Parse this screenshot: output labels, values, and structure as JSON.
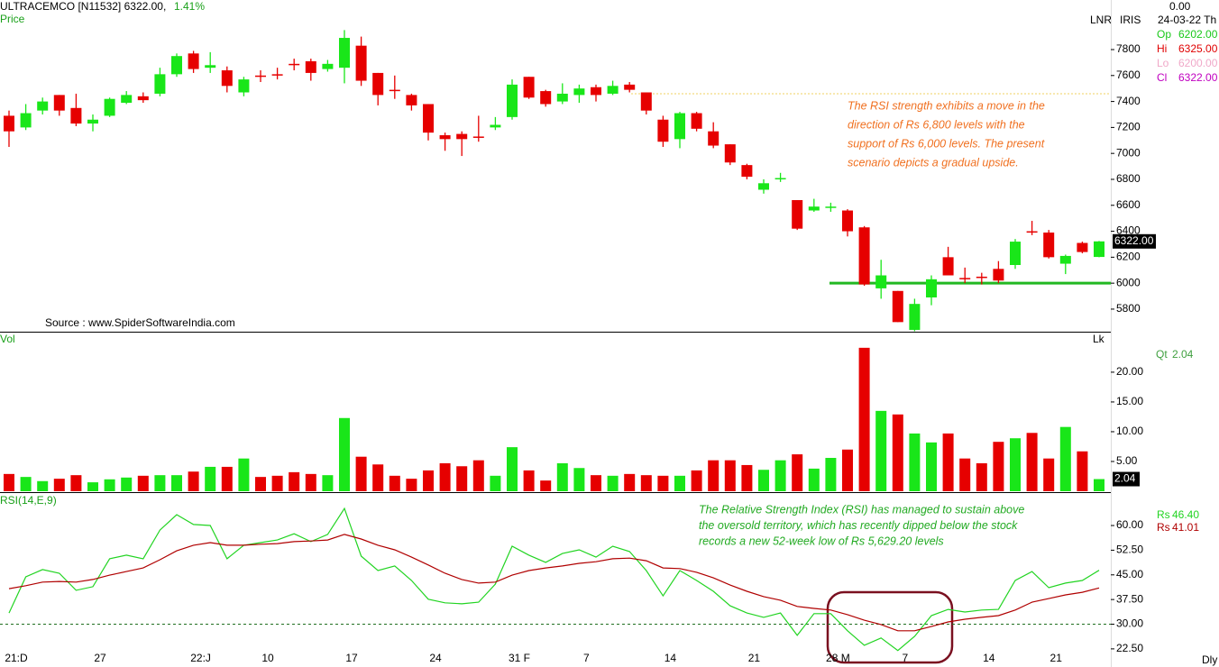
{
  "header": {
    "symbol": "ULTRACEMCO [N11532] 6322.00,",
    "change": "1.41%",
    "source": "Source : www.SpiderSoftwareIndia.com"
  },
  "side_panel": {
    "top": "0.00",
    "mode": "LNR",
    "indicator": "IRIS",
    "date": "24-03-22 Th",
    "period": "Dly",
    "ohlc": [
      {
        "label": "Op",
        "value": "6202.00",
        "color": "#19c819"
      },
      {
        "label": "Hi",
        "value": "6325.00",
        "color": "#e00000"
      },
      {
        "label": "Lo",
        "value": "6200.00",
        "color": "#f0a8c8"
      },
      {
        "label": "Cl",
        "value": "6322.00",
        "color": "#c000c0"
      }
    ]
  },
  "chart_data": [
    {
      "type": "candlestick",
      "title": "Price",
      "categories": [
        "21:D",
        null,
        null,
        null,
        null,
        "27",
        null,
        null,
        null,
        null,
        null,
        "22:J",
        null,
        null,
        null,
        "10",
        null,
        null,
        null,
        null,
        "17",
        null,
        null,
        null,
        null,
        "24",
        null,
        null,
        null,
        null,
        "31 F",
        null,
        null,
        null,
        "7",
        null,
        null,
        null,
        null,
        "14",
        null,
        null,
        null,
        null,
        "21",
        null,
        null,
        null,
        null,
        "28 M",
        null,
        null,
        null,
        "7",
        null,
        null,
        null,
        null,
        "14",
        null,
        null,
        null,
        "21",
        null,
        null,
        null
      ],
      "open": [
        7290,
        7200,
        7330,
        7450,
        7350,
        7230,
        7290,
        7390,
        7440,
        7460,
        7610,
        7770,
        7660,
        7640,
        7470,
        7600,
        7610,
        7690,
        7710,
        7650,
        7660,
        7830,
        7620,
        7490,
        7450,
        7380,
        7140,
        7150,
        7130,
        7200,
        7280,
        7590,
        7480,
        7400,
        7450,
        7510,
        7460,
        7530,
        7470,
        7260,
        7110,
        7310,
        7170,
        7070,
        6910,
        6720,
        6800,
        6640,
        6560,
        6580,
        6560,
        6430,
        5960,
        5940,
        5640,
        5890,
        6200,
        6040,
        6050,
        6110,
        6140,
        6400,
        6390,
        6150,
        6310,
        6202
      ],
      "high": [
        7330,
        7380,
        7430,
        7450,
        7460,
        7300,
        7430,
        7480,
        7470,
        7660,
        7770,
        7790,
        7780,
        7670,
        7590,
        7640,
        7660,
        7730,
        7730,
        7720,
        7950,
        7900,
        7620,
        7600,
        7460,
        7380,
        7160,
        7170,
        7290,
        7280,
        7570,
        7590,
        7490,
        7540,
        7530,
        7530,
        7560,
        7550,
        7470,
        7290,
        7320,
        7320,
        7240,
        7070,
        6920,
        6800,
        6850,
        6640,
        6650,
        6620,
        6570,
        6440,
        6180,
        5940,
        5880,
        6060,
        6280,
        6120,
        6080,
        6170,
        6340,
        6480,
        6410,
        6220,
        6320,
        6325
      ],
      "low": [
        7050,
        7180,
        7300,
        7290,
        7210,
        7170,
        7280,
        7380,
        7390,
        7440,
        7590,
        7620,
        7620,
        7470,
        7440,
        7550,
        7570,
        7640,
        7560,
        7630,
        7540,
        7520,
        7370,
        7420,
        7330,
        7100,
        7020,
        6980,
        7090,
        7180,
        7260,
        7420,
        7360,
        7380,
        7390,
        7400,
        7450,
        7470,
        7300,
        7050,
        7040,
        7170,
        7040,
        6910,
        6800,
        6690,
        6780,
        6410,
        6550,
        6550,
        6360,
        5980,
        5880,
        5700,
        5630,
        5830,
        6060,
        6000,
        5990,
        6000,
        6110,
        6370,
        6190,
        6070,
        6230,
        6200
      ],
      "close": [
        7170,
        7310,
        7400,
        7330,
        7230,
        7260,
        7420,
        7450,
        7410,
        7610,
        7750,
        7650,
        7680,
        7520,
        7570,
        7590,
        7600,
        7680,
        7620,
        7690,
        7890,
        7560,
        7450,
        7480,
        7370,
        7160,
        7110,
        7110,
        7120,
        7220,
        7530,
        7430,
        7380,
        7460,
        7500,
        7450,
        7520,
        7490,
        7330,
        7090,
        7310,
        7190,
        7060,
        6930,
        6820,
        6770,
        6810,
        6420,
        6590,
        6590,
        6400,
        5990,
        6060,
        5700,
        5840,
        6030,
        6060,
        6030,
        6040,
        6020,
        6320,
        6390,
        6200,
        6210,
        6240,
        6322
      ],
      "up_color": "#19e619",
      "down_color": "#e60000",
      "ylim": [
        5626,
        8182
      ],
      "yticks": [
        5800,
        6000,
        6200,
        6400,
        6600,
        6800,
        7000,
        7200,
        7400,
        7600,
        7800
      ],
      "last_label": "6322.00",
      "levels": [
        {
          "value": 7460,
          "color": "#f0d060",
          "style": "dotted"
        },
        {
          "value": 6000,
          "color": "#22b822",
          "style": "solid"
        }
      ],
      "annotation": [
        "The RSI strength exhibits a move in the",
        "direction of Rs 6,800 levels with the",
        "support of Rs 6,000 levels. The present",
        "scenario depicts a gradual upside."
      ]
    },
    {
      "type": "bar",
      "title": "Vol",
      "unit": "Lk",
      "values": [
        2.9,
        2.4,
        1.7,
        2.1,
        2.7,
        1.5,
        2.0,
        2.3,
        2.6,
        2.7,
        2.7,
        3.3,
        4.1,
        4.1,
        5.5,
        2.4,
        2.6,
        3.2,
        2.9,
        2.7,
        12.3,
        5.8,
        4.5,
        2.6,
        2.1,
        3.5,
        4.7,
        4.2,
        5.2,
        2.6,
        7.4,
        3.5,
        1.8,
        4.7,
        3.9,
        2.7,
        2.6,
        2.9,
        2.7,
        2.6,
        2.6,
        3.5,
        5.2,
        5.2,
        4.4,
        3.6,
        5.2,
        6.2,
        3.8,
        5.6,
        7.0,
        24.1,
        13.5,
        12.9,
        9.7,
        8.2,
        9.7,
        5.5,
        4.7,
        8.3,
        8.9,
        9.8,
        5.5,
        10.8,
        6.7,
        2.04
      ],
      "ylim": [
        0,
        26.5
      ],
      "yticks": [
        {
          "value": 5,
          "label": "5.00"
        },
        {
          "value": 10,
          "label": "10.00"
        },
        {
          "value": 15,
          "label": "15.00"
        },
        {
          "value": 20,
          "label": "20.00"
        }
      ],
      "last_label": "2.04",
      "legend": {
        "label": "Qt",
        "color": "#40a040"
      }
    },
    {
      "type": "line",
      "title": "RSI(14,E,9)",
      "series": [
        {
          "name": "Rs",
          "color": "#22d422",
          "last_label": "46.40",
          "values": [
            33.4,
            44.4,
            46.6,
            45.5,
            40.3,
            41.4,
            49.9,
            51.0,
            49.9,
            58.6,
            63.3,
            60.3,
            60.0,
            49.9,
            54.0,
            54.8,
            55.6,
            57.5,
            55.1,
            57.3,
            65.2,
            50.7,
            46.3,
            47.7,
            43.3,
            37.6,
            36.5,
            36.2,
            36.7,
            42.2,
            53.7,
            51.0,
            48.8,
            51.5,
            52.6,
            50.4,
            53.7,
            52.1,
            46.3,
            38.6,
            46.3,
            43.3,
            40.0,
            35.6,
            33.4,
            32.1,
            33.4,
            26.6,
            33.2,
            33.2,
            28.0,
            23.6,
            25.8,
            22.0,
            26.3,
            32.6,
            34.5,
            33.7,
            34.3,
            34.5,
            43.3,
            46.0,
            41.1,
            42.5,
            43.3,
            46.4
          ]
        },
        {
          "name": "Rs",
          "color": "#b00000",
          "last_label": "41.01",
          "values": [
            40.8,
            41.7,
            42.8,
            43.0,
            42.8,
            43.6,
            44.9,
            46.0,
            47.1,
            49.6,
            52.3,
            54.0,
            54.8,
            54.0,
            54.0,
            54.3,
            54.5,
            55.1,
            55.3,
            55.6,
            57.3,
            55.9,
            54.0,
            52.6,
            50.4,
            48.0,
            45.5,
            43.6,
            42.5,
            42.8,
            44.9,
            46.3,
            47.1,
            47.7,
            48.5,
            49.0,
            49.9,
            50.1,
            49.3,
            47.1,
            46.9,
            45.8,
            44.1,
            41.9,
            40.0,
            38.4,
            37.3,
            35.4,
            34.8,
            34.3,
            32.9,
            31.2,
            29.9,
            28.0,
            28.0,
            29.3,
            30.7,
            31.5,
            32.1,
            32.6,
            34.3,
            36.7,
            37.8,
            38.9,
            39.7,
            41.01
          ]
        }
      ],
      "ylim": [
        21.1,
        69.6
      ],
      "yticks": [
        {
          "value": 22.5,
          "label": "22.50"
        },
        {
          "value": 30,
          "label": "30.00"
        },
        {
          "value": 37.5,
          "label": "37.50"
        },
        {
          "value": 45,
          "label": "45.00"
        },
        {
          "value": 52.5,
          "label": "52.50"
        },
        {
          "value": 60,
          "label": "60.00"
        }
      ],
      "hline": 30,
      "annotation": [
        "The Relative Strength Index (RSI) has managed to sustain above",
        "the oversold territory, which has recently dipped below the stock",
        "records a new 52-week low of Rs 5,629.20 levels"
      ]
    }
  ]
}
